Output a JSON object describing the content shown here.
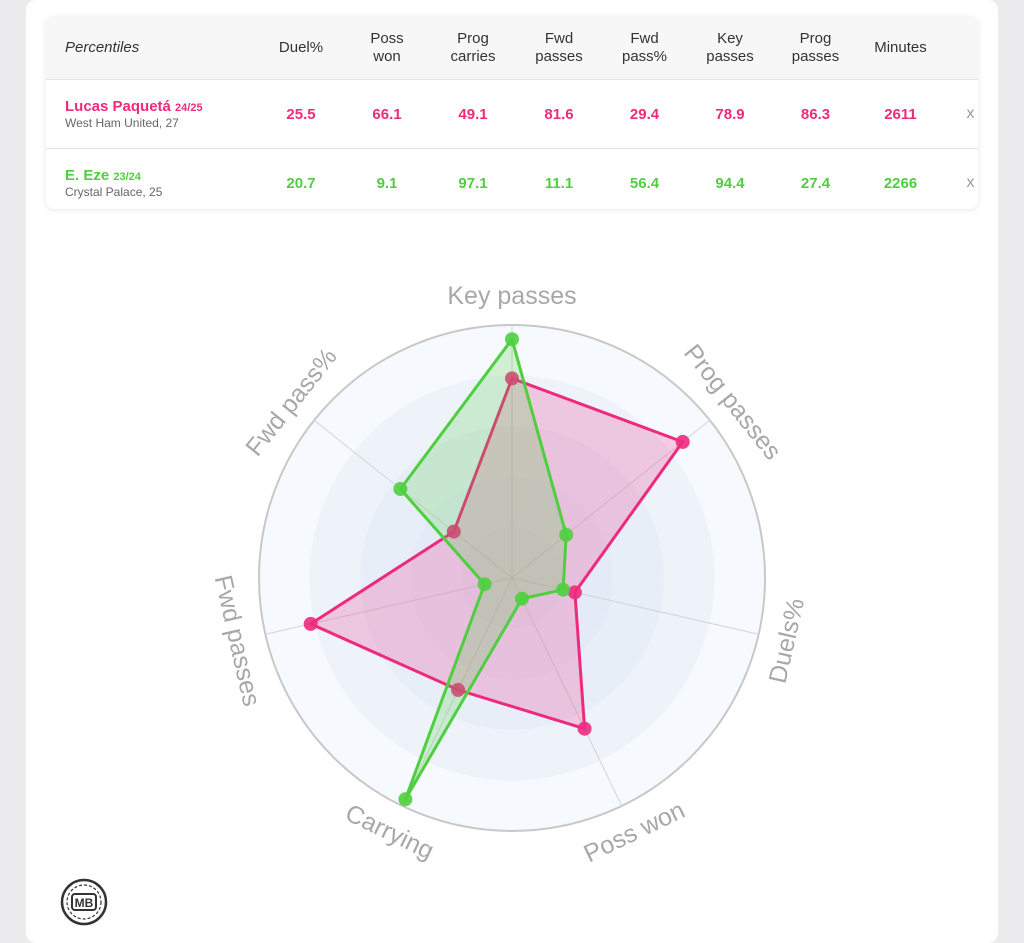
{
  "table": {
    "header_label": "Percentiles",
    "columns": [
      "Duel%",
      "Poss\nwon",
      "Prog\ncarries",
      "Fwd\npasses",
      "Fwd\npass%",
      "Key\npasses",
      "Prog\npasses",
      "Minutes"
    ],
    "rows": [
      {
        "name": "Lucas Paquetá",
        "season": "24/25",
        "team": "West Ham United, 27",
        "color": "#ee2a7f",
        "values": [
          "25.5",
          "66.1",
          "49.1",
          "81.6",
          "29.4",
          "78.9",
          "86.3",
          "2611"
        ],
        "remove": "x"
      },
      {
        "name": "E. Eze",
        "season": "23/24",
        "team": "Crystal Palace, 25",
        "color": "#4fcf3f",
        "values": [
          "20.7",
          "9.1",
          "97.1",
          "11.1",
          "56.4",
          "94.4",
          "27.4",
          "2266"
        ],
        "remove": "x"
      }
    ]
  },
  "chart_data": {
    "type": "radar",
    "axes": [
      "Key passes",
      "Prog passes",
      "Duels%",
      "Poss won",
      "Carrying",
      "Fwd passes",
      "Fwd pass%"
    ],
    "range": [
      0,
      100
    ],
    "series": [
      {
        "name": "Lucas Paquetá",
        "color": "#ee2a7f",
        "values": [
          78.9,
          86.3,
          25.5,
          66.1,
          49.1,
          81.6,
          29.4
        ]
      },
      {
        "name": "E. Eze",
        "color": "#4fcf3f",
        "values": [
          94.4,
          27.4,
          20.7,
          9.1,
          97.1,
          11.1,
          56.4
        ]
      }
    ]
  },
  "logo_text": "MB"
}
